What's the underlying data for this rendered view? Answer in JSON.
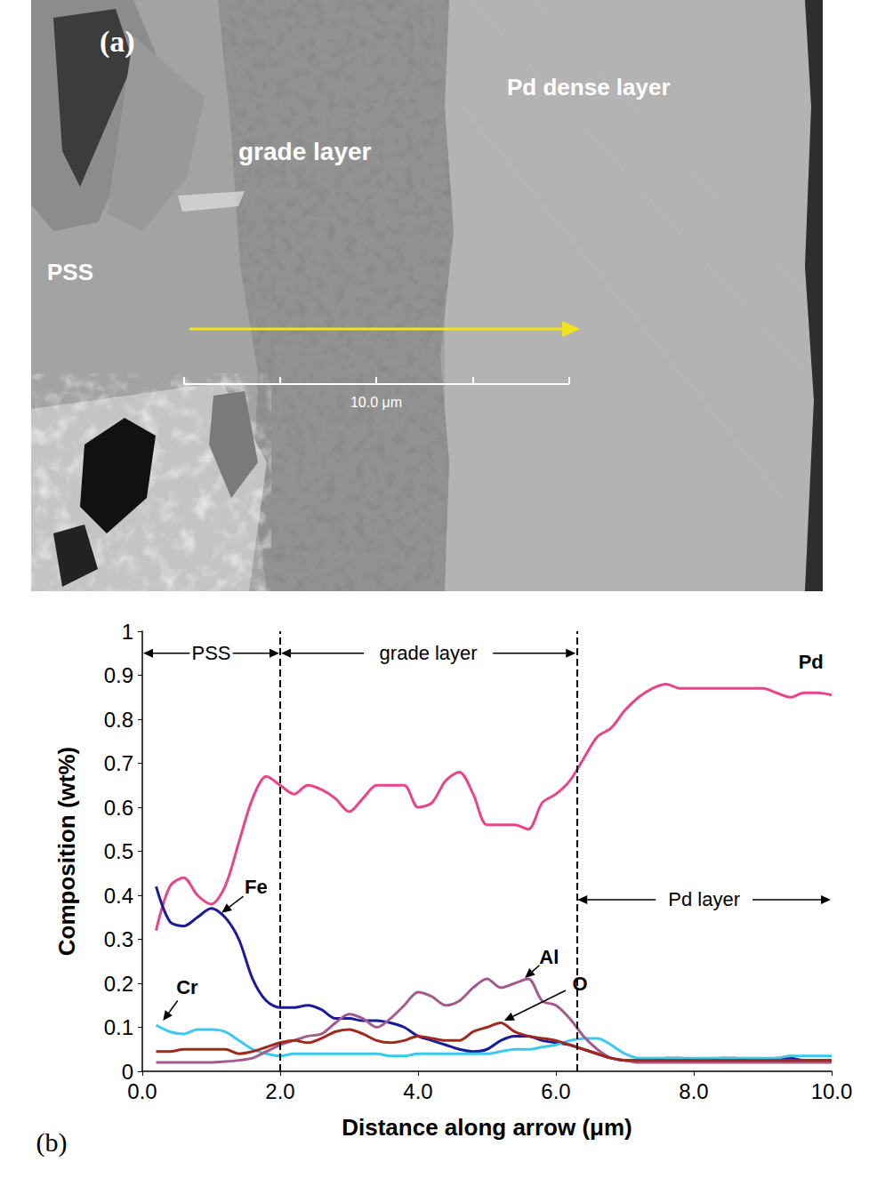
{
  "panel_a": {
    "letter": "(a)",
    "labels": [
      "PSS",
      "grade layer",
      "Pd dense layer"
    ],
    "scale_bar": "10.0 μm"
  },
  "chart_data": {
    "type": "line",
    "panel": "(b)",
    "x_label": "Distance along arrow (μm)",
    "y_label": "Composition (wt%)",
    "xlim": [
      0,
      10
    ],
    "ylim": [
      0,
      1
    ],
    "xticks": [
      {
        "value": 0,
        "label": "0.0"
      },
      {
        "value": 2,
        "label": "2.0"
      },
      {
        "value": 4,
        "label": "4.0"
      },
      {
        "value": 6,
        "label": "6.0"
      },
      {
        "value": 8,
        "label": "8.0"
      },
      {
        "value": 10,
        "label": "10.0"
      }
    ],
    "yticks": [
      0,
      0.1,
      0.2,
      0.3,
      0.4,
      0.5,
      0.6,
      0.7,
      0.8,
      0.9,
      1
    ],
    "grid": false,
    "dividers": [
      2.0,
      6.3
    ],
    "regions": [
      {
        "label": "PSS",
        "from": 0,
        "to": 2.0,
        "y": 0.95
      },
      {
        "label": "grade layer",
        "from": 2.0,
        "to": 6.3,
        "y": 0.95
      },
      {
        "label": "Pd layer",
        "from": 6.3,
        "to": 10,
        "y": 0.39
      }
    ],
    "x": [
      0.2,
      0.4,
      0.6,
      0.8,
      1.0,
      1.2,
      1.4,
      1.6,
      1.8,
      2.0,
      2.2,
      2.4,
      2.6,
      2.8,
      3.0,
      3.2,
      3.4,
      3.6,
      3.8,
      4.0,
      4.2,
      4.4,
      4.6,
      4.8,
      5.0,
      5.2,
      5.4,
      5.6,
      5.8,
      6.0,
      6.2,
      6.4,
      6.6,
      6.8,
      7.0,
      7.2,
      7.4,
      7.6,
      7.8,
      8.0,
      8.2,
      8.4,
      8.6,
      8.8,
      9.0,
      9.2,
      9.4,
      9.6,
      9.8,
      10.0
    ],
    "series": [
      {
        "name": "Pd",
        "color": "#e8448a",
        "label_at": [
          9.7,
          0.93
        ],
        "values": [
          0.32,
          0.42,
          0.44,
          0.4,
          0.38,
          0.42,
          0.52,
          0.62,
          0.67,
          0.65,
          0.63,
          0.65,
          0.64,
          0.62,
          0.59,
          0.62,
          0.65,
          0.65,
          0.65,
          0.6,
          0.61,
          0.66,
          0.68,
          0.63,
          0.56,
          0.56,
          0.56,
          0.55,
          0.61,
          0.63,
          0.66,
          0.71,
          0.76,
          0.78,
          0.82,
          0.85,
          0.87,
          0.88,
          0.87,
          0.87,
          0.87,
          0.87,
          0.87,
          0.87,
          0.87,
          0.86,
          0.85,
          0.86,
          0.86,
          0.855
        ]
      },
      {
        "name": "Fe",
        "color": "#1a1a9c",
        "label_at": [
          1.65,
          0.42
        ],
        "arrow_to": [
          1.15,
          0.36
        ],
        "values": [
          0.42,
          0.34,
          0.33,
          0.35,
          0.37,
          0.35,
          0.3,
          0.21,
          0.16,
          0.145,
          0.145,
          0.15,
          0.14,
          0.12,
          0.12,
          0.115,
          0.115,
          0.11,
          0.1,
          0.08,
          0.07,
          0.06,
          0.05,
          0.045,
          0.05,
          0.07,
          0.08,
          0.08,
          0.07,
          0.065,
          0.06,
          0.05,
          0.04,
          0.03,
          0.025,
          0.025,
          0.025,
          0.03,
          0.03,
          0.025,
          0.025,
          0.03,
          0.03,
          0.025,
          0.025,
          0.03,
          0.03,
          0.025,
          0.025,
          0.025
        ]
      },
      {
        "name": "Cr",
        "color": "#3cc8f0",
        "label_at": [
          0.65,
          0.19
        ],
        "arrow_to": [
          0.3,
          0.115
        ],
        "values": [
          0.105,
          0.09,
          0.085,
          0.095,
          0.095,
          0.09,
          0.07,
          0.05,
          0.04,
          0.035,
          0.04,
          0.04,
          0.04,
          0.04,
          0.04,
          0.04,
          0.04,
          0.035,
          0.035,
          0.04,
          0.04,
          0.04,
          0.04,
          0.04,
          0.04,
          0.045,
          0.05,
          0.05,
          0.055,
          0.06,
          0.07,
          0.075,
          0.075,
          0.06,
          0.04,
          0.03,
          0.03,
          0.03,
          0.03,
          0.03,
          0.03,
          0.03,
          0.03,
          0.03,
          0.03,
          0.03,
          0.035,
          0.035,
          0.035,
          0.035
        ]
      },
      {
        "name": "Al",
        "color": "#a35a8c",
        "label_at": [
          5.9,
          0.26
        ],
        "arrow_to": [
          5.55,
          0.212
        ],
        "values": [
          0.02,
          0.02,
          0.02,
          0.02,
          0.02,
          0.022,
          0.025,
          0.03,
          0.045,
          0.06,
          0.07,
          0.08,
          0.085,
          0.11,
          0.13,
          0.12,
          0.1,
          0.12,
          0.15,
          0.18,
          0.17,
          0.15,
          0.16,
          0.19,
          0.21,
          0.19,
          0.2,
          0.21,
          0.16,
          0.15,
          0.12,
          0.08,
          0.05,
          0.03,
          0.025,
          0.02,
          0.02,
          0.02,
          0.02,
          0.02,
          0.02,
          0.02,
          0.02,
          0.02,
          0.02,
          0.02,
          0.02,
          0.02,
          0.02,
          0.02
        ]
      },
      {
        "name": "O",
        "color": "#a0281c",
        "label_at": [
          6.35,
          0.2
        ],
        "arrow_to": [
          5.25,
          0.115
        ],
        "values": [
          0.045,
          0.045,
          0.05,
          0.05,
          0.05,
          0.05,
          0.04,
          0.045,
          0.055,
          0.065,
          0.07,
          0.065,
          0.075,
          0.09,
          0.095,
          0.085,
          0.07,
          0.065,
          0.07,
          0.08,
          0.075,
          0.07,
          0.07,
          0.09,
          0.1,
          0.11,
          0.09,
          0.08,
          0.075,
          0.07,
          0.06,
          0.05,
          0.04,
          0.03,
          0.025,
          0.025,
          0.025,
          0.025,
          0.025,
          0.025,
          0.025,
          0.025,
          0.025,
          0.025,
          0.025,
          0.025,
          0.025,
          0.025,
          0.025,
          0.025
        ]
      }
    ]
  }
}
